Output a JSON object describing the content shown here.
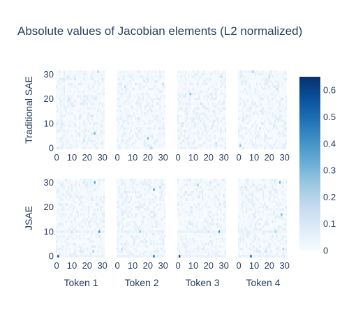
{
  "chart_data": {
    "type": "heatmap",
    "title": "Absolute values of Jacobian elements (L2 normalized)",
    "rows": [
      "Traditional SAE",
      "JSAE"
    ],
    "columns": [
      "Token 1",
      "Token 2",
      "Token 3",
      "Token 4"
    ],
    "x_ticks": [
      "0",
      "10",
      "20",
      "30"
    ],
    "y_ticks": [
      "0",
      "10",
      "20",
      "30"
    ],
    "grid_size": 32,
    "colorbar": {
      "min": 0,
      "max": 0.65,
      "ticks": [
        "0",
        "0.1",
        "0.2",
        "0.3",
        "0.4",
        "0.5",
        "0.6"
      ],
      "colors": [
        "#f7fbff",
        "#deebf7",
        "#c6dbef",
        "#9ecae1",
        "#6baed6",
        "#4292c6",
        "#2171b5",
        "#08519c",
        "#08306b"
      ]
    },
    "panels": [
      {
        "row": 0,
        "col": 0,
        "highlights": [
          {
            "x": 1,
            "y": 0,
            "v": 0.12
          },
          {
            "x": 25,
            "y": 6,
            "v": 0.32
          },
          {
            "x": 18,
            "y": 3,
            "v": 0.18
          },
          {
            "x": 12,
            "y": 28,
            "v": 0.15
          },
          {
            "x": 27,
            "y": 31,
            "v": 0.2
          },
          {
            "x": 8,
            "y": 20,
            "v": 0.14
          }
        ]
      },
      {
        "row": 0,
        "col": 1,
        "highlights": [
          {
            "x": 20,
            "y": 4,
            "v": 0.3
          },
          {
            "x": 22,
            "y": 0,
            "v": 0.2
          },
          {
            "x": 5,
            "y": 25,
            "v": 0.16
          },
          {
            "x": 30,
            "y": 26,
            "v": 0.18
          },
          {
            "x": 14,
            "y": 12,
            "v": 0.12
          }
        ]
      },
      {
        "row": 0,
        "col": 2,
        "highlights": [
          {
            "x": 8,
            "y": 22,
            "v": 0.28
          },
          {
            "x": 25,
            "y": 2,
            "v": 0.18
          },
          {
            "x": 15,
            "y": 18,
            "v": 0.14
          },
          {
            "x": 28,
            "y": 29,
            "v": 0.15
          },
          {
            "x": 3,
            "y": 10,
            "v": 0.12
          }
        ]
      },
      {
        "row": 0,
        "col": 3,
        "highlights": [
          {
            "x": 1,
            "y": 1,
            "v": 0.3
          },
          {
            "x": 20,
            "y": 29,
            "v": 0.18
          },
          {
            "x": 9,
            "y": 31,
            "v": 0.2
          },
          {
            "x": 14,
            "y": 8,
            "v": 0.14
          },
          {
            "x": 25,
            "y": 24,
            "v": 0.16
          }
        ]
      },
      {
        "row": 1,
        "col": 0,
        "highlights": [
          {
            "x": 1,
            "y": 0,
            "v": 0.6
          },
          {
            "x": 25,
            "y": 30,
            "v": 0.38
          },
          {
            "x": 28,
            "y": 10,
            "v": 0.42
          },
          {
            "x": 24,
            "y": 2,
            "v": 0.25
          },
          {
            "x": 10,
            "y": 10,
            "v": 0.15
          },
          {
            "x": 18,
            "y": 30,
            "v": 0.15
          }
        ]
      },
      {
        "row": 1,
        "col": 1,
        "highlights": [
          {
            "x": 24,
            "y": 0,
            "v": 0.55
          },
          {
            "x": 24,
            "y": 27,
            "v": 0.4
          },
          {
            "x": 15,
            "y": 10,
            "v": 0.25
          },
          {
            "x": 3,
            "y": 3,
            "v": 0.18
          },
          {
            "x": 28,
            "y": 28,
            "v": 0.2
          },
          {
            "x": 19,
            "y": 6,
            "v": 0.14
          }
        ]
      },
      {
        "row": 1,
        "col": 2,
        "highlights": [
          {
            "x": 1,
            "y": 0,
            "v": 0.62
          },
          {
            "x": 27,
            "y": 10,
            "v": 0.4
          },
          {
            "x": 13,
            "y": 29,
            "v": 0.25
          },
          {
            "x": 5,
            "y": 26,
            "v": 0.15
          },
          {
            "x": 20,
            "y": 10,
            "v": 0.14
          }
        ]
      },
      {
        "row": 1,
        "col": 3,
        "highlights": [
          {
            "x": 8,
            "y": 0,
            "v": 0.62
          },
          {
            "x": 27,
            "y": 30,
            "v": 0.35
          },
          {
            "x": 28,
            "y": 17,
            "v": 0.3
          },
          {
            "x": 24,
            "y": 10,
            "v": 0.22
          },
          {
            "x": 18,
            "y": 2,
            "v": 0.15
          },
          {
            "x": 29,
            "y": 3,
            "v": 0.2
          }
        ]
      }
    ]
  }
}
